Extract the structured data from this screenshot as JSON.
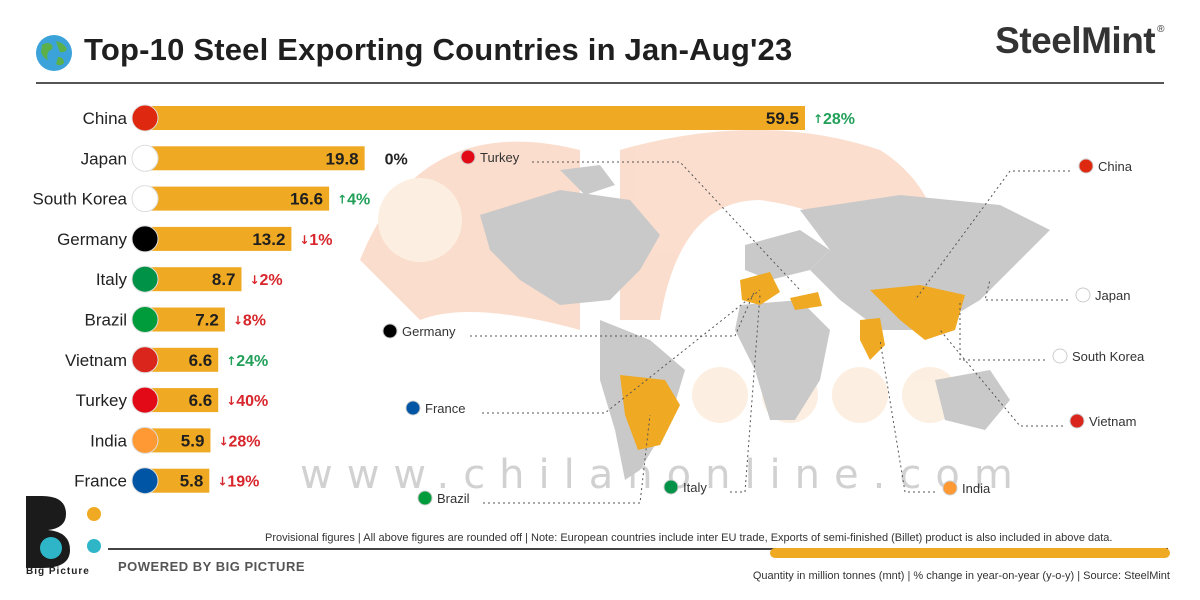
{
  "header": {
    "title": "Top-10 Steel Exporting Countries in Jan-Aug'23",
    "brand": "SteelMint",
    "brand_mark": "®",
    "globe_icon": "globe-icon"
  },
  "chart_data": {
    "type": "bar",
    "orientation": "horizontal",
    "categories": [
      "China",
      "Japan",
      "South Korea",
      "Germany",
      "Italy",
      "Brazil",
      "Vietnam",
      "Turkey",
      "India",
      "France"
    ],
    "values": [
      59.5,
      19.8,
      16.6,
      13.2,
      8.7,
      7.2,
      6.6,
      6.6,
      5.9,
      5.8
    ],
    "value_labels": [
      "59.5",
      "19.8",
      "16.6",
      "13.2",
      "8.7",
      "7.2",
      "6.6",
      "6.6",
      "5.9",
      "5.8"
    ],
    "yoy_change": [
      "28%",
      "0%",
      "4%",
      "1%",
      "2%",
      "8%",
      "24%",
      "40%",
      "28%",
      "19%"
    ],
    "yoy_direction": [
      "up",
      "flat",
      "up",
      "down",
      "down",
      "down",
      "up",
      "down",
      "down",
      "down"
    ],
    "bar_color": "#EFA922",
    "up_color": "#22A05A",
    "down_color": "#D7262C",
    "flat_color": "#222222"
  },
  "map": {
    "labels": [
      "Turkey",
      "China",
      "Japan",
      "Germany",
      "South Korea",
      "France",
      "Vietnam",
      "Brazil",
      "Italy",
      "India"
    ]
  },
  "footer": {
    "note": "Provisional figures | All above figures are rounded off | Note: European countries include inter EU trade, Exports of semi-finished (Billet) product is also included in above data.",
    "powered_by": "POWERED BY BIG PICTURE",
    "source": "Quantity in million tonnes (mnt) | % change in year-on-year (y-o-y) | Source: SteelMint",
    "logo_label": "Big Picture"
  },
  "watermark": "www.chilanonline.com"
}
